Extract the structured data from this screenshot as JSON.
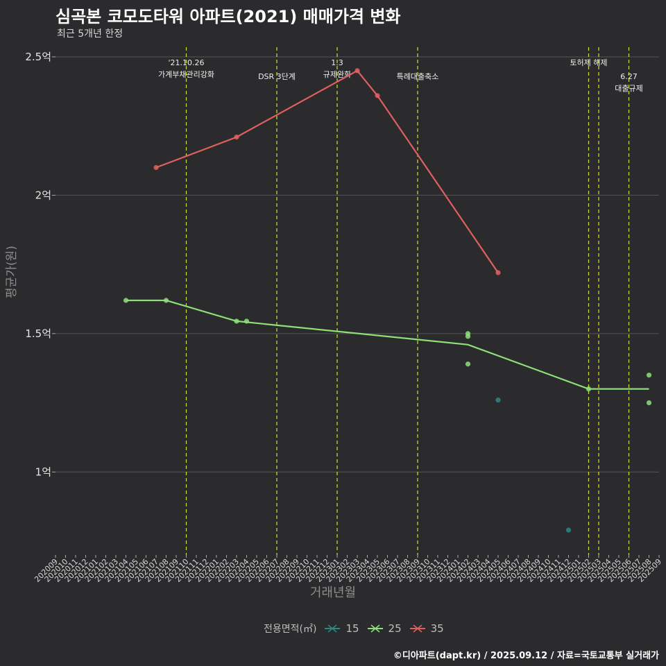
{
  "title": "심곡본 코모도타워 아파트(2021) 매매가격 변화",
  "subtitle": "최근 5개년 한정",
  "caption": "©디아파트(dapt.kr) / 2025.09.12 / 자료=국토교통부 실거래가",
  "colors": {
    "background": "#2b2a2c",
    "s15": "#2a8a82",
    "s25": "#8ee07a",
    "s35": "#e06060",
    "event_line": "#d4e03a",
    "grid": "#555555"
  },
  "chart_data": {
    "type": "line",
    "xlabel": "거래년월",
    "ylabel": "평균가(원)",
    "categories": [
      "202009",
      "202010",
      "202011",
      "202012",
      "202101",
      "202102",
      "202103",
      "202104",
      "202105",
      "202106",
      "202107",
      "202108",
      "202109",
      "202110",
      "202111",
      "202112",
      "202201",
      "202202",
      "202203",
      "202204",
      "202205",
      "202206",
      "202207",
      "202208",
      "202209",
      "202210",
      "202211",
      "202212",
      "202301",
      "202302",
      "202303",
      "202304",
      "202305",
      "202306",
      "202307",
      "202308",
      "202309",
      "202310",
      "202311",
      "202312",
      "202401",
      "202402",
      "202403",
      "202404",
      "202405",
      "202406",
      "202407",
      "202408",
      "202409",
      "202410",
      "202411",
      "202412",
      "202501",
      "202502",
      "202503",
      "202504",
      "202505",
      "202506",
      "202507",
      "202508",
      "202509"
    ],
    "ylim": [
      0.7,
      2.55
    ],
    "yticks": [
      {
        "value": 1.0,
        "label": "1억"
      },
      {
        "value": 1.5,
        "label": "1.5억"
      },
      {
        "value": 2.0,
        "label": "2억"
      },
      {
        "value": 2.5,
        "label": "2.5억"
      }
    ],
    "legend_title": "전용면적(㎡)",
    "legend_position": "bottom",
    "grid": true,
    "series": [
      {
        "name": "15",
        "color": "#2a8a82",
        "points": [
          {
            "x": "202405",
            "y": 1.26
          },
          {
            "x": "202412",
            "y": 0.79
          }
        ],
        "line": []
      },
      {
        "name": "25",
        "color": "#8ee07a",
        "points": [
          {
            "x": "202104",
            "y": 1.62
          },
          {
            "x": "202108",
            "y": 1.62
          },
          {
            "x": "202203",
            "y": 1.545
          },
          {
            "x": "202204",
            "y": 1.545
          },
          {
            "x": "202402",
            "y": 1.5
          },
          {
            "x": "202402",
            "y": 1.49
          },
          {
            "x": "202402",
            "y": 1.39
          },
          {
            "x": "202502",
            "y": 1.3
          },
          {
            "x": "202508",
            "y": 1.35
          },
          {
            "x": "202508",
            "y": 1.25
          }
        ],
        "line": [
          {
            "x": "202104",
            "y": 1.62
          },
          {
            "x": "202108",
            "y": 1.62
          },
          {
            "x": "202203",
            "y": 1.545
          },
          {
            "x": "202402",
            "y": 1.46
          },
          {
            "x": "202502",
            "y": 1.3
          },
          {
            "x": "202508",
            "y": 1.3
          }
        ]
      },
      {
        "name": "35",
        "color": "#e06060",
        "points": [
          {
            "x": "202107",
            "y": 2.1
          },
          {
            "x": "202203",
            "y": 2.21
          },
          {
            "x": "202303",
            "y": 2.45
          },
          {
            "x": "202305",
            "y": 2.36
          },
          {
            "x": "202405",
            "y": 1.72
          }
        ],
        "line": [
          {
            "x": "202107",
            "y": 2.1
          },
          {
            "x": "202203",
            "y": 2.21
          },
          {
            "x": "202303",
            "y": 2.45
          },
          {
            "x": "202305",
            "y": 2.36
          },
          {
            "x": "202405",
            "y": 1.72
          }
        ]
      }
    ],
    "events": [
      {
        "x": "202110",
        "label_lines": [
          "'21.10.26",
          "가계부채관리강화"
        ],
        "row": 0
      },
      {
        "x": "202207",
        "label_lines": [
          "DSR 3단계"
        ],
        "row": 1
      },
      {
        "x": "202301",
        "label_lines": [
          "1.3",
          "규제완화"
        ],
        "row": 0
      },
      {
        "x": "202309",
        "label_lines": [
          "특례대출축소"
        ],
        "row": 1
      },
      {
        "x": "202502",
        "label_lines": [
          "토허제 해제"
        ],
        "row": 0
      },
      {
        "x": "202503",
        "label_lines": [],
        "row": 0
      },
      {
        "x": "202506",
        "label_lines": [
          "6.27",
          "대출규제"
        ],
        "row": 1
      }
    ]
  }
}
